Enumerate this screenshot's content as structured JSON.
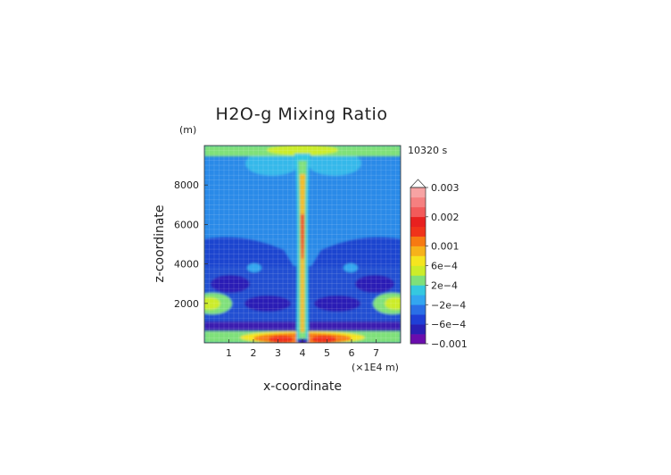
{
  "chart_data": {
    "type": "heatmap",
    "title": "H2O-g Mixing Ratio",
    "timestamp": "10320 s",
    "xlabel": "x-coordinate",
    "ylabel": "z-coordinate",
    "x_unit_label": "(×1E4 m)",
    "y_unit_label": "(m)",
    "xlim": [
      0,
      8
    ],
    "ylim": [
      0,
      10000
    ],
    "x_ticks": [
      1,
      2,
      3,
      4,
      5,
      6,
      7
    ],
    "x_tick_labels": [
      "1",
      "2",
      "3",
      "4",
      "5",
      "6",
      "7"
    ],
    "y_ticks": [
      2000,
      4000,
      6000,
      8000
    ],
    "y_tick_labels": [
      "2000",
      "4000",
      "6000",
      "8000"
    ],
    "grid": true,
    "colorbar": {
      "placement": "right",
      "extend_top": true,
      "colors": [
        "#6a0dad",
        "#2a1fb5",
        "#1f3fd6",
        "#2a6fe6",
        "#33a6f0",
        "#35c8e0",
        "#7fe07a",
        "#ccec2a",
        "#f5e51f",
        "#f7b21a",
        "#f77a12",
        "#f0331a",
        "#e8201f",
        "#f25a5a",
        "#f58080",
        "#f7a3a3"
      ],
      "values": [
        -0.001,
        -0.0006,
        -0.0002,
        0.0002,
        0.0006,
        0.001,
        0.002,
        0.003
      ],
      "labels": [
        "−0.001",
        "−6e−4",
        "−2e−4",
        "2e−4",
        "6e−4",
        "0.001",
        "0.002",
        "0.003"
      ]
    }
  }
}
